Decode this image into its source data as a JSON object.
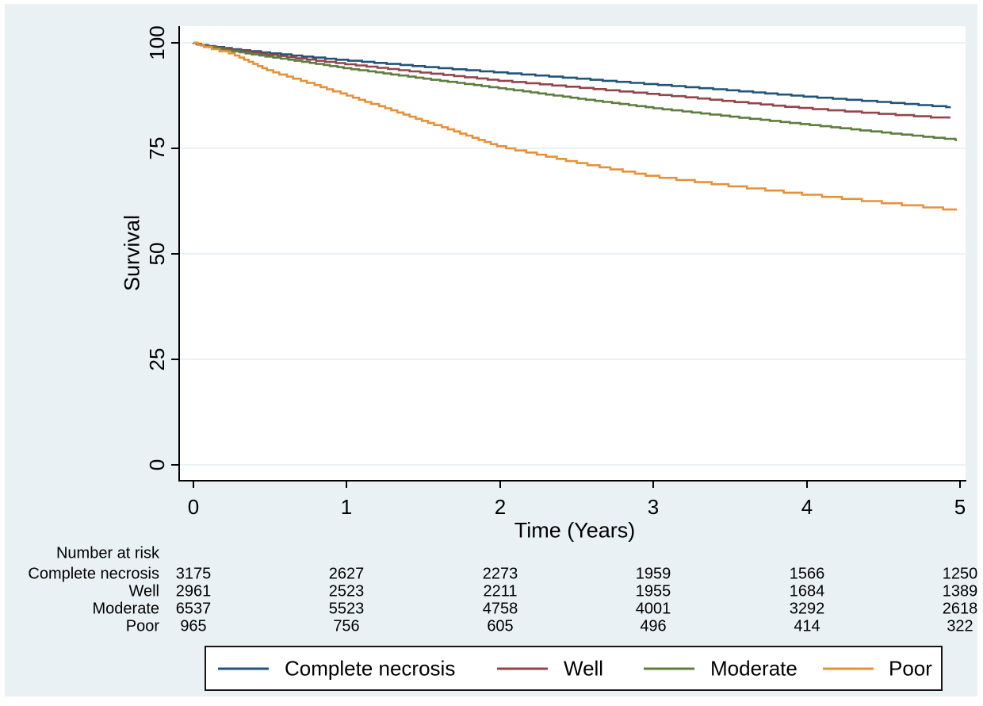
{
  "figure": {
    "background_color": "#eaf1f4",
    "plot_background_color": "#ffffff",
    "gridline_color": "#e4edf2",
    "axis_color": "#000000"
  },
  "risk_table": {
    "header": "Number at risk",
    "rows": [
      {
        "label": "Complete necrosis",
        "values": [
          "3175",
          "2627",
          "2273",
          "1959",
          "1566",
          "1250"
        ]
      },
      {
        "label": "Well",
        "values": [
          "2961",
          "2523",
          "2211",
          "1955",
          "1684",
          "1389"
        ]
      },
      {
        "label": "Moderate",
        "values": [
          "6537",
          "5523",
          "4758",
          "4001",
          "3292",
          "2618"
        ]
      },
      {
        "label": "Poor",
        "values": [
          "965",
          "756",
          "605",
          "496",
          "414",
          "322"
        ]
      }
    ]
  },
  "legend": {
    "items": [
      {
        "label": "Complete necrosis",
        "color": "#215478"
      },
      {
        "label": "Well",
        "color": "#92464b"
      },
      {
        "label": "Moderate",
        "color": "#5e7d3e"
      },
      {
        "label": "Poor",
        "color": "#e5913a"
      }
    ]
  },
  "chart_data": {
    "type": "line",
    "subtype": "kaplan-meier-step",
    "title": "",
    "xlabel": "Time (Years)",
    "ylabel": "Survival",
    "xlim": [
      0,
      5
    ],
    "ylim": [
      0,
      100
    ],
    "x_ticks": [
      0,
      1,
      2,
      3,
      4,
      5
    ],
    "y_ticks": [
      0,
      25,
      50,
      75,
      100
    ],
    "grid": "horizontal",
    "legend_position": "bottom",
    "series": [
      {
        "name": "Complete necrosis",
        "color": "#215478",
        "step_size": 0.25,
        "t_end": 4.94,
        "x": [
          0,
          0.05,
          0.1,
          0.25,
          0.5,
          0.75,
          1,
          1.5,
          2,
          2.5,
          3,
          3.5,
          4,
          4.5,
          5
        ],
        "values": [
          100,
          99.6,
          99.3,
          98.6,
          97.6,
          96.7,
          95.9,
          94.4,
          93.0,
          91.6,
          90.2,
          88.8,
          87.3,
          86.0,
          84.6
        ]
      },
      {
        "name": "Well",
        "color": "#92464b",
        "step_size": 0.28,
        "t_end": 4.93,
        "x": [
          0,
          0.05,
          0.1,
          0.25,
          0.5,
          0.75,
          1,
          1.5,
          2,
          2.5,
          3,
          3.5,
          4,
          4.5,
          5
        ],
        "values": [
          100,
          99.5,
          99.2,
          98.4,
          97.2,
          96.1,
          95.0,
          93.0,
          91.1,
          89.5,
          87.9,
          86.2,
          84.5,
          83.2,
          82.0
        ]
      },
      {
        "name": "Moderate",
        "color": "#5e7d3e",
        "step_size": 0.25,
        "t_end": 4.98,
        "x": [
          0,
          0.05,
          0.1,
          0.25,
          0.5,
          0.75,
          1,
          1.5,
          2,
          2.5,
          3,
          3.5,
          4,
          4.5,
          5
        ],
        "values": [
          100,
          99.5,
          99.1,
          98.1,
          96.7,
          95.4,
          94.0,
          91.6,
          89.3,
          86.9,
          84.6,
          82.6,
          80.7,
          78.8,
          77.0
        ]
      },
      {
        "name": "Poor",
        "color": "#e5913a",
        "step_size": 0.5,
        "t_end": 4.98,
        "x": [
          0,
          0.05,
          0.1,
          0.25,
          0.5,
          0.75,
          1,
          1.5,
          2,
          2.5,
          3,
          3.5,
          4,
          4.5,
          5
        ],
        "values": [
          100,
          99.4,
          98.9,
          97.5,
          93.4,
          90.6,
          87.7,
          81.6,
          75.5,
          71.7,
          68.4,
          66.2,
          64.1,
          62.2,
          60.3
        ]
      }
    ],
    "number_at_risk_times": [
      0,
      1,
      2,
      3,
      4,
      5
    ]
  }
}
